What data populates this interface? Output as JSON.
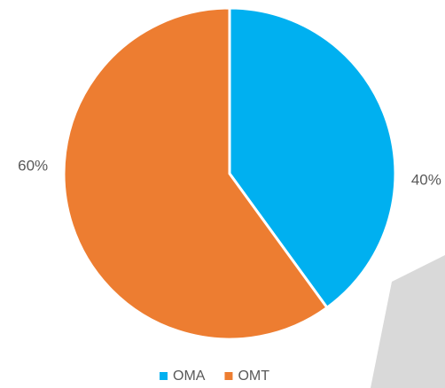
{
  "chart_data": {
    "type": "pie",
    "categories": [
      "OMA",
      "OMT"
    ],
    "values": [
      40,
      60
    ],
    "value_labels": [
      "40%",
      "60%"
    ],
    "colors": [
      "#00b0f0",
      "#ed7d31"
    ],
    "legend": "bottom"
  }
}
